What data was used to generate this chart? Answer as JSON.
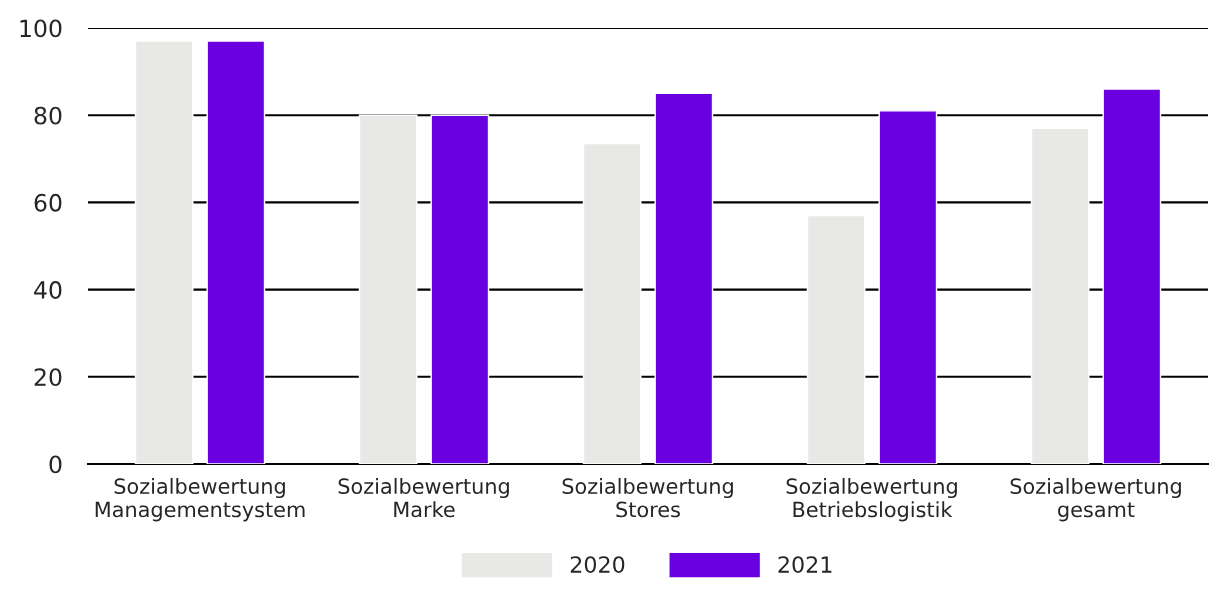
{
  "chart_data": {
    "type": "bar",
    "categories": [
      "Sozialbewertung\nManagementsystem",
      "Sozialbewertung\nMarke",
      "Sozialbewertung\nStores",
      "Sozialbewertung\nBetriebslogistik",
      "Sozialbewertung\ngesamt"
    ],
    "series": [
      {
        "name": "2020",
        "color": "#e8e8e6",
        "values": [
          97,
          80,
          73.5,
          57,
          77
        ]
      },
      {
        "name": "2021",
        "color": "#6a00e0",
        "values": [
          97,
          80,
          85,
          81,
          86
        ]
      }
    ],
    "ylim": [
      0,
      100
    ],
    "yticks": [
      0,
      20,
      40,
      60,
      80,
      100
    ],
    "grid": "y",
    "legend": "bottom"
  }
}
